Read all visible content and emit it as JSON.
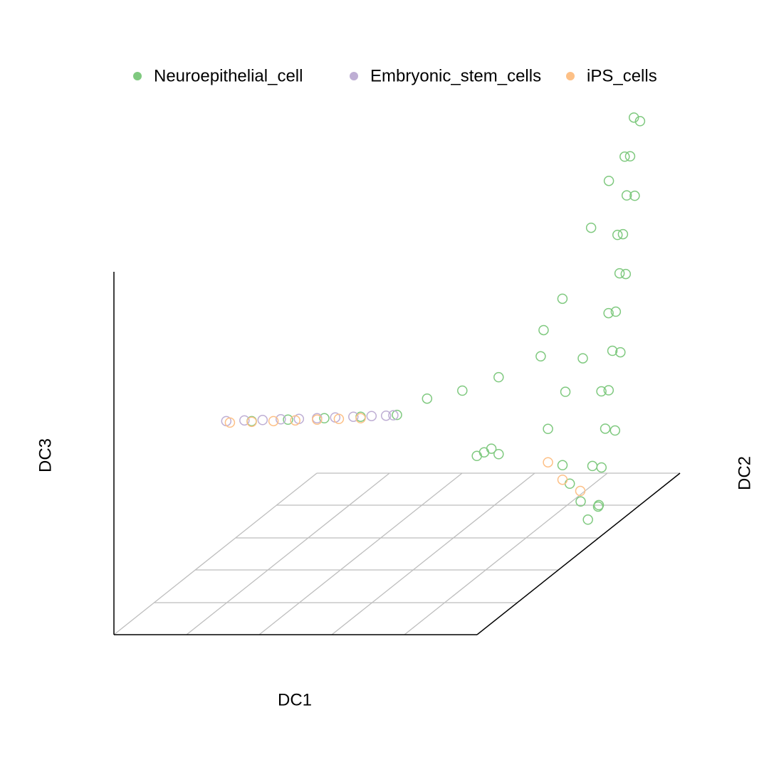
{
  "chart_data": {
    "type": "scatter3d",
    "legend": "top",
    "xlabel": "DC1",
    "ylabel": "DC2",
    "zlabel": "DC3",
    "xlim": [
      0,
      1
    ],
    "ylim": [
      0,
      1
    ],
    "zlim": [
      0,
      1
    ],
    "series": [
      {
        "name": "Neuroepithelial_cell",
        "color": "#7fc97f",
        "x": [
          0.998,
          0.985,
          0.973,
          0.96,
          0.948,
          0.935,
          0.923,
          0.91,
          0.898,
          0.885,
          0.873,
          0.1,
          0.2,
          0.3,
          0.4,
          0.5,
          0.583,
          0.68,
          0.78,
          0.84,
          0.82,
          0.816,
          0.839,
          0.86,
          0.74,
          0.72,
          0.76,
          0.78,
          0.92,
          0.95,
          0.9,
          0.97,
          0.86,
          0.88,
          0.9,
          1.0,
          0.96,
          1.0,
          0.94,
          0.97,
          0.915,
          0.94,
          0.895,
          0.92,
          0.87,
          0.89
        ],
        "y": [
          0.6,
          0.64,
          0.68,
          0.72,
          0.76,
          0.8,
          0.84,
          0.88,
          0.92,
          0.96,
          1,
          0.5,
          0.5,
          0.5,
          0.5,
          0.5,
          0.5,
          0.5,
          0.5,
          0.6,
          0.65,
          0.75,
          0.85,
          0.9,
          0.5,
          0.5,
          0.5,
          0.5,
          0.6,
          0.6,
          0.6,
          0.6,
          0.6,
          0.65,
          0.7,
          0.6,
          0.64,
          0.68,
          0.72,
          0.76,
          0.8,
          0.84,
          0.88,
          0.92,
          0.96,
          1
        ],
        "z": [
          0.086,
          0.176,
          0.265,
          0.353,
          0.444,
          0.534,
          0.622,
          0.712,
          0.801,
          0.891,
          0.98,
          0.366,
          0.37,
          0.374,
          0.378,
          0.383,
          0.428,
          0.45,
          0.487,
          0.5,
          0.55,
          0.592,
          0.743,
          0.85,
          0.28,
          0.27,
          0.29,
          0.275,
          0.149,
          0.1,
          0.2,
          0.05,
          0.3,
          0.38,
          0.45,
          0.09,
          0.18,
          0.26,
          0.35,
          0.44,
          0.53,
          0.62,
          0.71,
          0.8,
          0.89,
          0.97
        ]
      },
      {
        "name": "Embryonic_stem_cells",
        "color": "#beaed4",
        "x": [
          0.03,
          0.08,
          0.13,
          0.18,
          0.23,
          0.28,
          0.33,
          0.38,
          0.43,
          0.47,
          0.49
        ],
        "y": [
          0.5,
          0.5,
          0.5,
          0.5,
          0.5,
          0.5,
          0.5,
          0.5,
          0.5,
          0.5,
          0.5
        ],
        "z": [
          0.366,
          0.368,
          0.369,
          0.371,
          0.372,
          0.374,
          0.376,
          0.378,
          0.38,
          0.381,
          0.382
        ]
      },
      {
        "name": "iPS_cells",
        "color": "#fdc086",
        "x": [
          0.04,
          0.1,
          0.16,
          0.22,
          0.28,
          0.34,
          0.4,
          0.86,
          0.949,
          0.9
        ],
        "y": [
          0.5,
          0.5,
          0.5,
          0.5,
          0.5,
          0.5,
          0.5,
          0.6,
          0.6,
          0.6
        ],
        "z": [
          0.362,
          0.364,
          0.366,
          0.368,
          0.37,
          0.372,
          0.374,
          0.208,
          0.129,
          0.16
        ]
      }
    ]
  }
}
